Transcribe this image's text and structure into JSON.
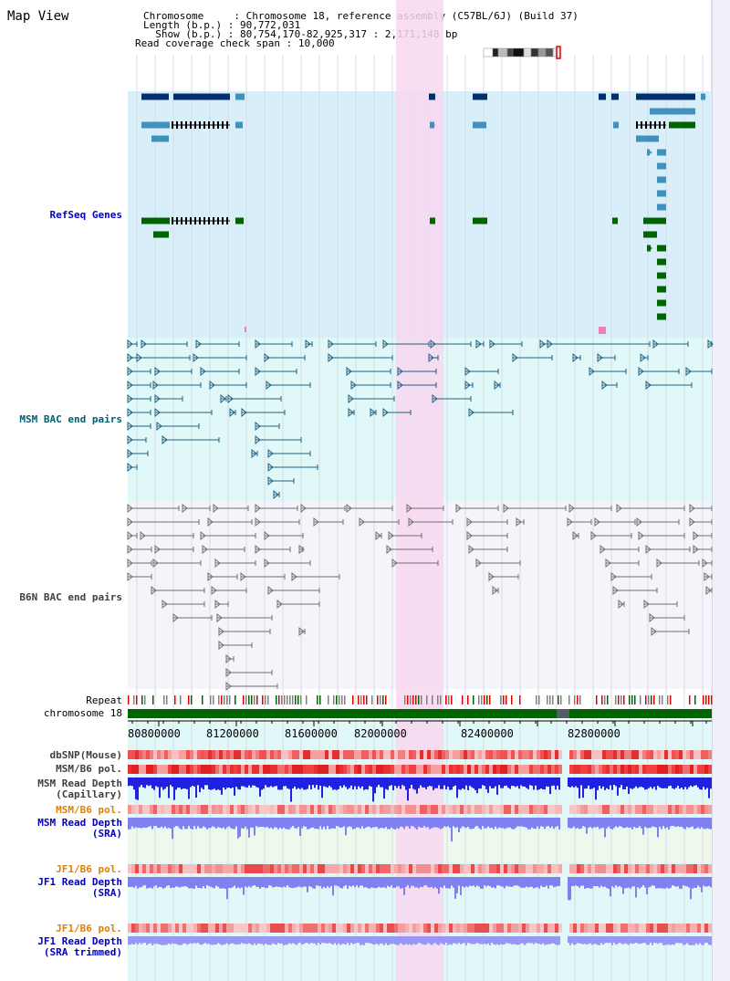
{
  "title": "Map View",
  "info": {
    "chromosome_label": "Chromosome",
    "chromosome_value": "Chromosome 18, reference assembly (C57BL/6J) (Build 37)",
    "length_label": "Length (b.p.)",
    "length_value": "90,772,031",
    "show_label": "Show (b.p.)",
    "show_value": "80,754,170-82,925,317 : 2,171,148 bp",
    "coverage_label": "Read coverage check span",
    "coverage_value": "10,000"
  },
  "tracks": {
    "refseq": "RefSeq Genes",
    "msm_bac": "MSM BAC end pairs",
    "b6n_bac": "B6N BAC end pairs",
    "repeat": "Repeat",
    "chromosome": "chromosome 18",
    "dbsnp": "dbSNP(Mouse)",
    "msm_b6_pol_1": "MSM/B6 pol.",
    "msm_depth_cap_1": "MSM Read Depth",
    "msm_depth_cap_2": "(Capillary)",
    "msm_b6_pol_2": "MSM/B6 pol.",
    "msm_depth_sra_1": "MSM Read Depth",
    "msm_depth_sra_2": "(SRA)",
    "jf1_pol_1": "JF1/B6 pol.",
    "jf1_depth_sra_1": "JF1 Read Depth",
    "jf1_depth_sra_2": "(SRA)",
    "jf1_pol_2": "JF1/B6 pol.",
    "jf1_depth_trim_1": "JF1 Read Depth",
    "jf1_depth_trim_2": "(SRA trimmed)"
  },
  "axis": {
    "ticks": [
      "80800000",
      "81200000",
      "81600000",
      "82000000",
      "82400000",
      "82800000"
    ]
  },
  "colors": {
    "refseq_bg": "#d8eef8",
    "bac_bg": "#e0f8f8",
    "highlight": "#f8d8f0",
    "gene_dark": "#003070",
    "gene_mid": "#4090c0",
    "gene_green": "#006400",
    "msm_line": "#206080",
    "b6n_line": "#707070",
    "chromosome": "#006400",
    "label_blue": "#0000c0",
    "label_teal": "#006070",
    "label_orange": "#e08000",
    "label_gray": "#404040"
  }
}
